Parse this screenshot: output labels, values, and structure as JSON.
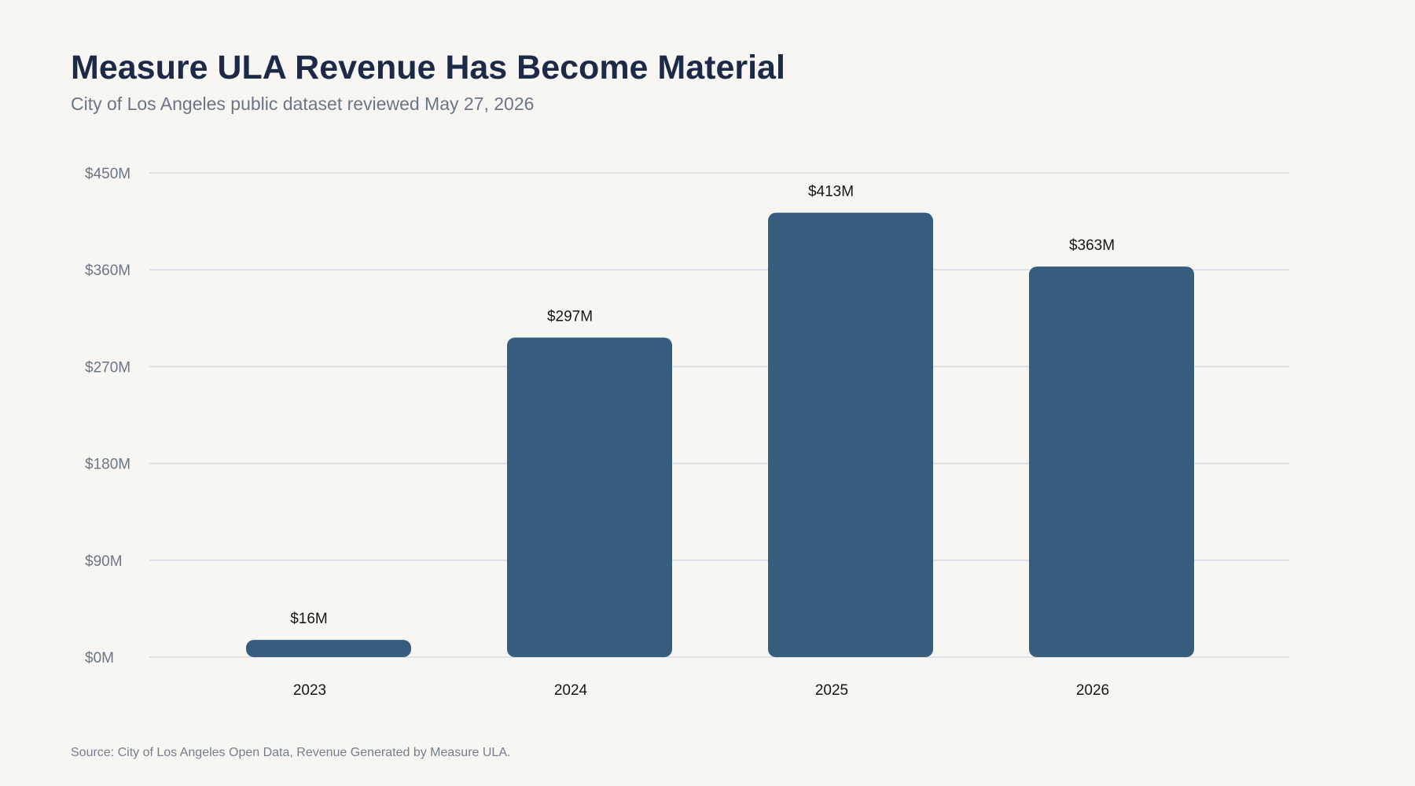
{
  "header": {
    "title": "Measure ULA Revenue Has Become Material",
    "subtitle": "City of Los Angeles public dataset reviewed May 27, 2026"
  },
  "footer": {
    "source": "Source: City of Los Angeles Open Data, Revenue Generated by Measure ULA."
  },
  "colors": {
    "bar": "#365d7e",
    "grid": "#d8dce2",
    "background": "#f8f6f2"
  },
  "chart_data": {
    "type": "bar",
    "categories": [
      "2023",
      "2024",
      "2025",
      "2026"
    ],
    "values": [
      16,
      297,
      413,
      363
    ],
    "value_labels": [
      "$16M",
      "$297M",
      "$413M",
      "$363M"
    ],
    "y_ticks": [
      0,
      90,
      180,
      270,
      360,
      450
    ],
    "y_tick_labels": [
      "$0M",
      "$90M",
      "$180M",
      "$270M",
      "$360M",
      "$450M"
    ],
    "ylim": [
      0,
      450
    ],
    "grid": true,
    "legend": "none"
  }
}
